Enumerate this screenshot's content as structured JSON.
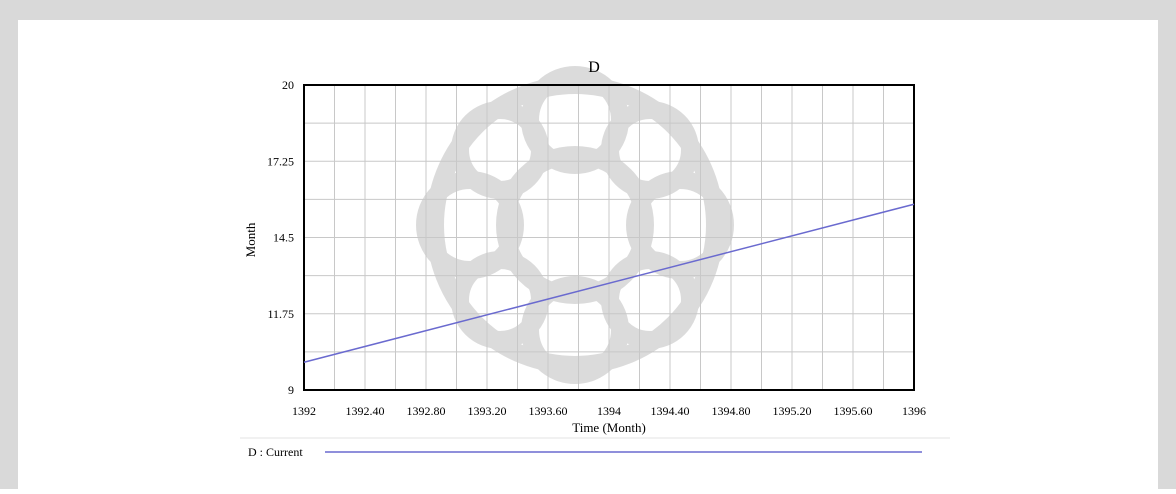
{
  "chart_data": {
    "type": "line",
    "title": "D",
    "xlabel": "Time (Month)",
    "ylabel": "Month",
    "xlim": [
      1392,
      1396
    ],
    "ylim": [
      9,
      20
    ],
    "x_ticks": [
      "1392",
      "1392.40",
      "1392.80",
      "1393.20",
      "1393.60",
      "1394",
      "1394.40",
      "1394.80",
      "1395.20",
      "1395.60",
      "1396"
    ],
    "y_ticks": [
      "9",
      "11.75",
      "14.5",
      "17.25",
      "20"
    ],
    "grid": true,
    "legend": "bottom",
    "series": [
      {
        "name": "D : Current",
        "color": "#6a6acf",
        "x": [
          1392,
          1396
        ],
        "y": [
          10.0,
          15.7
        ]
      }
    ]
  }
}
